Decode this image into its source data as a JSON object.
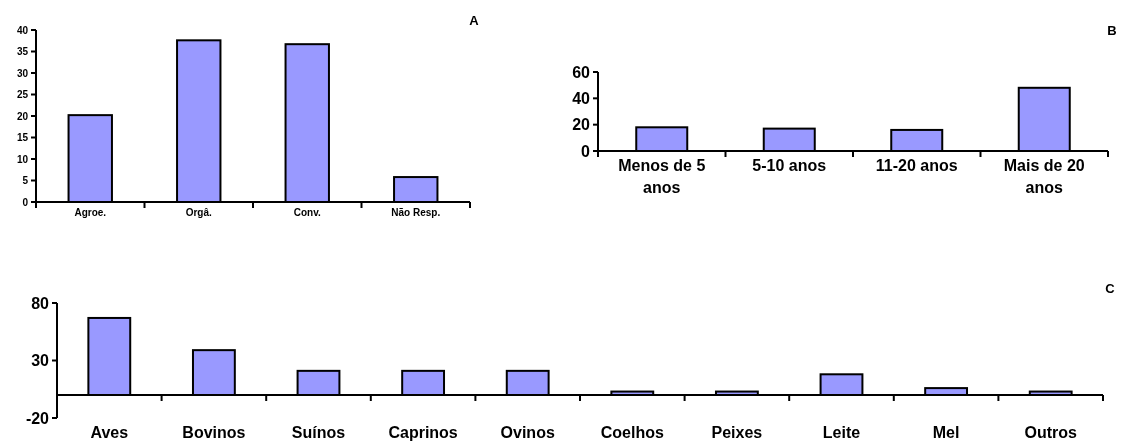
{
  "chart_data": [
    {
      "type": "bar",
      "title": "A",
      "categories": [
        "Agroe.",
        "Orgâ.",
        "Conv.",
        "Não Resp."
      ],
      "values": [
        20.2,
        37.6,
        36.7,
        5.8
      ],
      "color": "#9999ff",
      "ylim": [
        0,
        40
      ],
      "yticks": [
        0,
        5,
        10,
        15,
        20,
        25,
        30,
        35,
        40
      ],
      "grid": false
    },
    {
      "type": "bar",
      "title": "B",
      "categories": [
        "Menos de 5 anos",
        "5-10 anos",
        "11-20 anos",
        "Mais de 20 anos"
      ],
      "values": [
        18,
        17,
        16,
        48
      ],
      "color": "#9999ff",
      "ylim": [
        0,
        60
      ],
      "yticks": [
        0,
        20,
        40,
        60
      ],
      "grid": false
    },
    {
      "type": "bar",
      "title": "C",
      "categories": [
        "Aves",
        "Bovinos",
        "Suínos",
        "Caprinos",
        "Ovinos",
        "Coelhos",
        "Peixes",
        "Leite",
        "Mel",
        "Outros"
      ],
      "values": [
        67,
        39,
        21,
        21,
        21,
        3,
        3,
        18,
        6,
        3
      ],
      "color": "#9999ff",
      "ylim": [
        -20,
        80
      ],
      "yticks": [
        -20,
        30,
        80
      ],
      "grid": false
    }
  ]
}
